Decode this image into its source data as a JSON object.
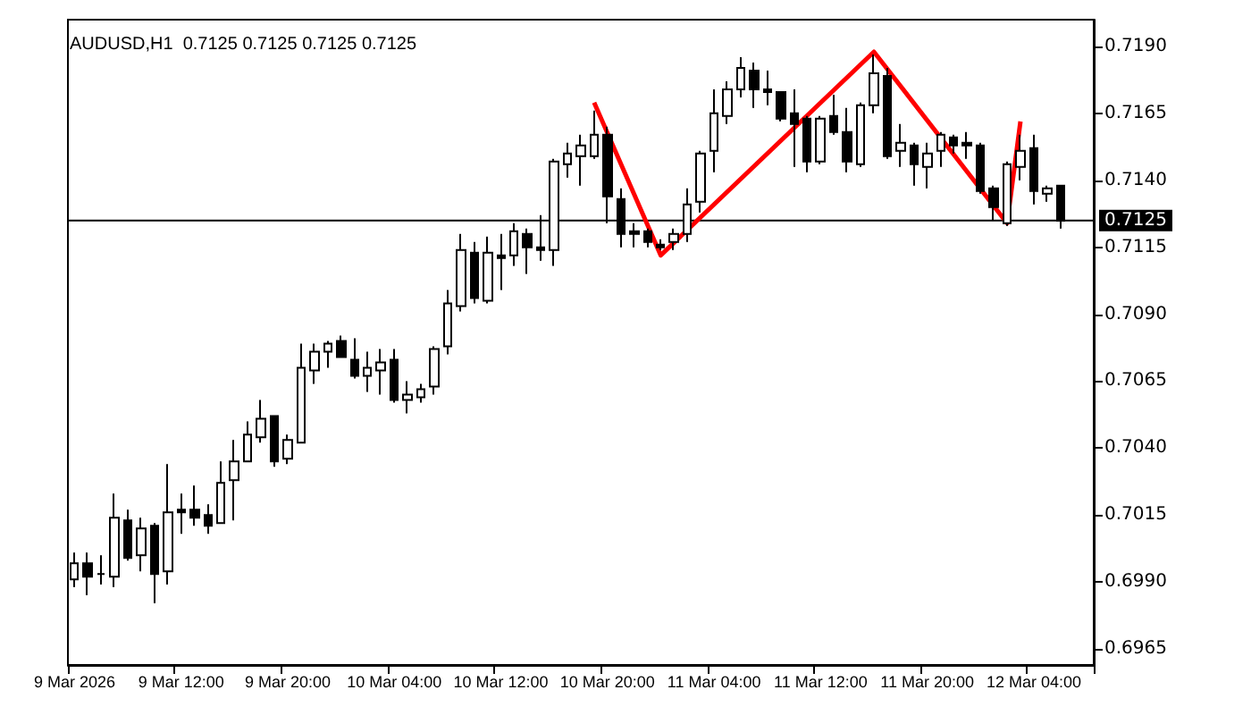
{
  "chart_data": {
    "type": "candlestick",
    "title": "AUDUSD,H1  0.7125 0.7125 0.7125 0.7125",
    "categories": [
      "9 Mar 2026",
      null,
      null,
      null,
      null,
      null,
      null,
      null,
      "9 Mar 12:00",
      null,
      null,
      null,
      null,
      null,
      null,
      null,
      "9 Mar 20:00",
      null,
      null,
      null,
      null,
      null,
      null,
      null,
      "10 Mar 04:00",
      null,
      null,
      null,
      null,
      null,
      null,
      null,
      "10 Mar 12:00",
      null,
      null,
      null,
      null,
      null,
      null,
      null,
      "10 Mar 20:00",
      null,
      null,
      null,
      null,
      null,
      null,
      null,
      "11 Mar 04:00",
      null,
      null,
      null,
      null,
      null,
      null,
      null,
      "11 Mar 12:00",
      null,
      null,
      null,
      null,
      null,
      null,
      null,
      "11 Mar 20:00",
      null,
      null,
      null,
      null,
      null,
      null,
      null,
      "12 Mar 04:00",
      null,
      null
    ],
    "ohlc": [
      [
        0.6991,
        0.7001,
        0.6988,
        0.6997
      ],
      [
        0.6997,
        0.7001,
        0.6985,
        0.6992
      ],
      [
        0.6993,
        0.7,
        0.6989,
        0.6993
      ],
      [
        0.6992,
        0.7023,
        0.6988,
        0.7014
      ],
      [
        0.7013,
        0.7017,
        0.6998,
        0.6999
      ],
      [
        0.7,
        0.7014,
        0.6994,
        0.701
      ],
      [
        0.7011,
        0.7012,
        0.6982,
        0.6993
      ],
      [
        0.6994,
        0.7034,
        0.6989,
        0.7016
      ],
      [
        0.7017,
        0.7023,
        0.7008,
        0.7016
      ],
      [
        0.7017,
        0.7026,
        0.7011,
        0.7014
      ],
      [
        0.7015,
        0.7019,
        0.7008,
        0.7011
      ],
      [
        0.7012,
        0.7035,
        0.7012,
        0.7027
      ],
      [
        0.7028,
        0.7043,
        0.7013,
        0.7035
      ],
      [
        0.7035,
        0.705,
        0.7035,
        0.7045
      ],
      [
        0.7044,
        0.7058,
        0.7042,
        0.7051
      ],
      [
        0.7052,
        0.7052,
        0.7033,
        0.7035
      ],
      [
        0.7036,
        0.7045,
        0.7034,
        0.7043
      ],
      [
        0.7042,
        0.7079,
        0.7042,
        0.707
      ],
      [
        0.7069,
        0.7079,
        0.7064,
        0.7076
      ],
      [
        0.7076,
        0.708,
        0.707,
        0.7079
      ],
      [
        0.708,
        0.7082,
        0.7074,
        0.7074
      ],
      [
        0.7073,
        0.7081,
        0.7066,
        0.7067
      ],
      [
        0.7067,
        0.7076,
        0.7061,
        0.707
      ],
      [
        0.7069,
        0.7077,
        0.706,
        0.7072
      ],
      [
        0.7073,
        0.7077,
        0.7057,
        0.7058
      ],
      [
        0.7058,
        0.7065,
        0.7053,
        0.706
      ],
      [
        0.7059,
        0.7064,
        0.7057,
        0.7062
      ],
      [
        0.7063,
        0.7078,
        0.706,
        0.7077
      ],
      [
        0.7078,
        0.7099,
        0.7075,
        0.7094
      ],
      [
        0.7093,
        0.712,
        0.7091,
        0.7114
      ],
      [
        0.7113,
        0.7117,
        0.7094,
        0.7096
      ],
      [
        0.7095,
        0.7119,
        0.7094,
        0.7113
      ],
      [
        0.7112,
        0.712,
        0.7099,
        0.7111
      ],
      [
        0.7112,
        0.7124,
        0.7108,
        0.7121
      ],
      [
        0.712,
        0.7122,
        0.7105,
        0.7115
      ],
      [
        0.7115,
        0.7127,
        0.711,
        0.7114
      ],
      [
        0.7114,
        0.7148,
        0.7108,
        0.7147
      ],
      [
        0.7146,
        0.7154,
        0.7141,
        0.715
      ],
      [
        0.7149,
        0.7157,
        0.7138,
        0.7153
      ],
      [
        0.7149,
        0.7166,
        0.7148,
        0.7157
      ],
      [
        0.7157,
        0.716,
        0.7124,
        0.7134
      ],
      [
        0.7133,
        0.7137,
        0.7115,
        0.712
      ],
      [
        0.7121,
        0.7124,
        0.7115,
        0.712
      ],
      [
        0.7121,
        0.7122,
        0.7115,
        0.7117
      ],
      [
        0.7116,
        0.7118,
        0.7114,
        0.7115
      ],
      [
        0.7117,
        0.7122,
        0.7114,
        0.712
      ],
      [
        0.712,
        0.7137,
        0.7117,
        0.7131
      ],
      [
        0.7132,
        0.7151,
        0.7128,
        0.715
      ],
      [
        0.7151,
        0.7174,
        0.7143,
        0.7165
      ],
      [
        0.7164,
        0.7177,
        0.7161,
        0.7174
      ],
      [
        0.7174,
        0.7186,
        0.7171,
        0.7182
      ],
      [
        0.7181,
        0.7184,
        0.7167,
        0.7174
      ],
      [
        0.7174,
        0.7181,
        0.7168,
        0.7173
      ],
      [
        0.7173,
        0.7173,
        0.7162,
        0.7163
      ],
      [
        0.7165,
        0.7174,
        0.7145,
        0.7161
      ],
      [
        0.7163,
        0.7164,
        0.7143,
        0.7147
      ],
      [
        0.7147,
        0.7164,
        0.7146,
        0.7163
      ],
      [
        0.7164,
        0.7172,
        0.7157,
        0.7158
      ],
      [
        0.7158,
        0.7167,
        0.7143,
        0.7147
      ],
      [
        0.7146,
        0.7169,
        0.7145,
        0.7168
      ],
      [
        0.7168,
        0.7187,
        0.7165,
        0.718
      ],
      [
        0.7179,
        0.7182,
        0.7148,
        0.7149
      ],
      [
        0.7151,
        0.7161,
        0.7145,
        0.7154
      ],
      [
        0.7153,
        0.7154,
        0.7138,
        0.7146
      ],
      [
        0.7145,
        0.7154,
        0.7137,
        0.715
      ],
      [
        0.7151,
        0.7158,
        0.7145,
        0.7157
      ],
      [
        0.7156,
        0.7157,
        0.715,
        0.7153
      ],
      [
        0.7154,
        0.7158,
        0.7148,
        0.7153
      ],
      [
        0.7153,
        0.7154,
        0.7135,
        0.7136
      ],
      [
        0.7137,
        0.7138,
        0.7125,
        0.713
      ],
      [
        0.7124,
        0.7147,
        0.7123,
        0.7146
      ],
      [
        0.7145,
        0.7157,
        0.714,
        0.7151
      ],
      [
        0.7152,
        0.7157,
        0.7131,
        0.7136
      ],
      [
        0.7135,
        0.7138,
        0.7132,
        0.7137
      ],
      [
        0.7138,
        0.7138,
        0.7122,
        0.7125
      ]
    ],
    "series": [
      {
        "type": "line",
        "color": "#ff0000",
        "values": [
          null,
          null,
          null,
          null,
          null,
          null,
          null,
          null,
          null,
          null,
          null,
          null,
          null,
          null,
          null,
          null,
          null,
          null,
          null,
          null,
          null,
          null,
          null,
          null,
          null,
          null,
          null,
          null,
          null,
          null,
          null,
          null,
          null,
          null,
          null,
          null,
          null,
          null,
          null,
          0.7169,
          null,
          null,
          null,
          null,
          0.7112,
          null,
          null,
          null,
          null,
          null,
          null,
          null,
          null,
          null,
          null,
          null,
          null,
          null,
          null,
          null,
          0.7188,
          null,
          null,
          null,
          null,
          null,
          null,
          null,
          null,
          null,
          0.7124,
          0.7162,
          null,
          null,
          null
        ]
      }
    ],
    "ylim": [
      0.6959,
      0.72
    ],
    "yticks": [
      0.6965,
      {
        "value": 0.699,
        "label": "0.6990"
      },
      0.7015,
      {
        "value": 0.704,
        "label": "0.7040"
      },
      0.7065,
      {
        "value": 0.709,
        "label": "0.7090"
      },
      0.7115,
      {
        "value": 0.714,
        "label": "0.7140"
      },
      0.7165,
      {
        "value": 0.719,
        "label": "0.7190"
      }
    ],
    "ref_lines": [
      {
        "axis": "y",
        "value": 0.7125,
        "label": "0.7125",
        "color": "#000000"
      }
    ],
    "grid": false
  }
}
